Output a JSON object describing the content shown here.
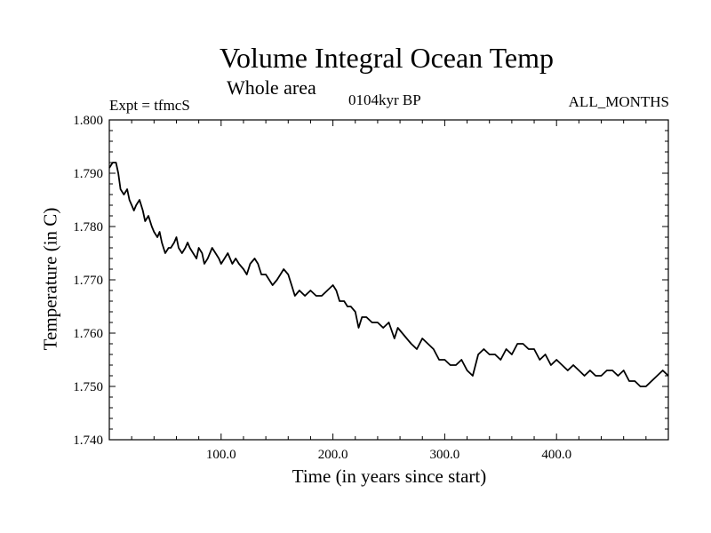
{
  "chart_data": {
    "type": "line",
    "title": "Volume Integral Ocean Temp",
    "subtitle": "Whole area",
    "annotations": {
      "experiment": "Expt = tfmcS",
      "period": "0104kyr BP",
      "months": "ALL_MONTHS"
    },
    "xlabel": "Time (in years since start)",
    "ylabel": "Temperature (in C)",
    "xlim": [
      0,
      500
    ],
    "ylim": [
      1.74,
      1.8
    ],
    "x_ticks": [
      100,
      200,
      300,
      400
    ],
    "x_tick_labels": [
      "100.0",
      "200.0",
      "300.0",
      "400.0"
    ],
    "y_ticks": [
      1.74,
      1.75,
      1.76,
      1.77,
      1.78,
      1.79,
      1.8
    ],
    "y_tick_labels": [
      "1.740",
      "1.750",
      "1.760",
      "1.770",
      "1.780",
      "1.790",
      "1.800"
    ],
    "grid": false,
    "color": "#000000",
    "series": [
      {
        "x": [
          0,
          3,
          6,
          8,
          10,
          13,
          16,
          18,
          20,
          22,
          24,
          27,
          30,
          32,
          35,
          38,
          40,
          43,
          45,
          47,
          50,
          53,
          55,
          58,
          60,
          62,
          65,
          68,
          70,
          72,
          75,
          78,
          80,
          83,
          85,
          88,
          90,
          92,
          95,
          98,
          100,
          103,
          106,
          110,
          113,
          116,
          120,
          123,
          126,
          130,
          133,
          136,
          140,
          143,
          146,
          150,
          153,
          156,
          160,
          163,
          166,
          170,
          175,
          180,
          185,
          190,
          195,
          200,
          203,
          206,
          210,
          213,
          216,
          220,
          223,
          226,
          230,
          235,
          240,
          245,
          250,
          255,
          258,
          262,
          266,
          270,
          275,
          280,
          285,
          290,
          295,
          300,
          305,
          310,
          315,
          320,
          325,
          330,
          335,
          340,
          345,
          350,
          355,
          360,
          365,
          370,
          375,
          380,
          385,
          390,
          395,
          400,
          405,
          410,
          415,
          420,
          425,
          430,
          435,
          440,
          445,
          450,
          455,
          460,
          465,
          470,
          475,
          480,
          485,
          490,
          495,
          500
        ],
        "y": [
          1.791,
          1.792,
          1.792,
          1.79,
          1.787,
          1.786,
          1.787,
          1.785,
          1.784,
          1.783,
          1.784,
          1.785,
          1.783,
          1.781,
          1.782,
          1.78,
          1.779,
          1.778,
          1.779,
          1.777,
          1.775,
          1.776,
          1.776,
          1.777,
          1.778,
          1.776,
          1.775,
          1.776,
          1.777,
          1.776,
          1.775,
          1.774,
          1.776,
          1.775,
          1.773,
          1.774,
          1.775,
          1.776,
          1.775,
          1.774,
          1.773,
          1.774,
          1.775,
          1.773,
          1.774,
          1.773,
          1.772,
          1.771,
          1.773,
          1.774,
          1.773,
          1.771,
          1.771,
          1.77,
          1.769,
          1.77,
          1.771,
          1.772,
          1.771,
          1.769,
          1.767,
          1.768,
          1.767,
          1.768,
          1.767,
          1.767,
          1.768,
          1.769,
          1.768,
          1.766,
          1.766,
          1.765,
          1.765,
          1.764,
          1.761,
          1.763,
          1.763,
          1.762,
          1.762,
          1.761,
          1.762,
          1.759,
          1.761,
          1.76,
          1.759,
          1.758,
          1.757,
          1.759,
          1.758,
          1.757,
          1.755,
          1.755,
          1.754,
          1.754,
          1.755,
          1.753,
          1.752,
          1.756,
          1.757,
          1.756,
          1.756,
          1.755,
          1.757,
          1.756,
          1.758,
          1.758,
          1.757,
          1.757,
          1.755,
          1.756,
          1.754,
          1.755,
          1.754,
          1.753,
          1.754,
          1.753,
          1.752,
          1.753,
          1.752,
          1.752,
          1.753,
          1.753,
          1.752,
          1.753,
          1.751,
          1.751,
          1.75,
          1.75,
          1.751,
          1.752,
          1.753,
          1.752
        ]
      }
    ]
  }
}
